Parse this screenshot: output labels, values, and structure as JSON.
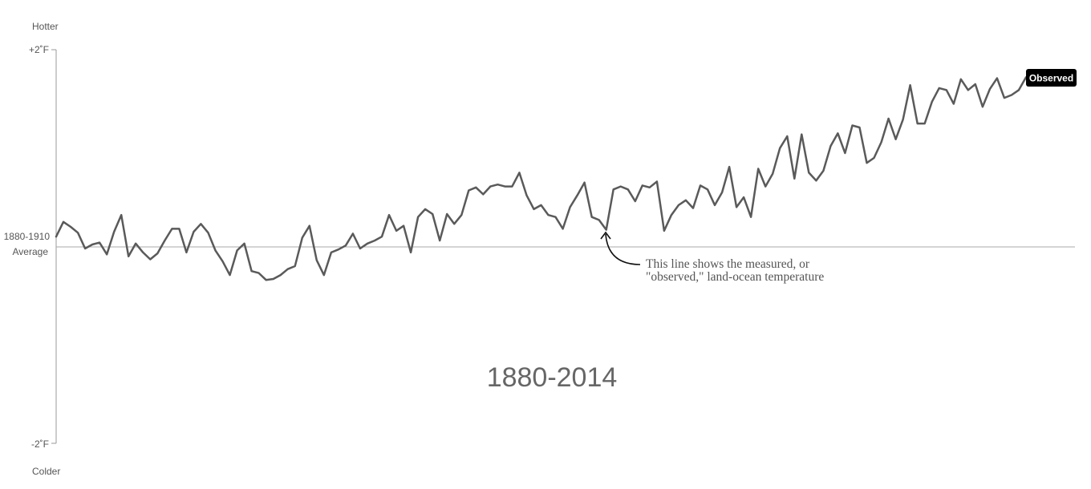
{
  "chart_data": {
    "type": "line",
    "xlim": [
      1880,
      2014
    ],
    "ylim": [
      -2,
      2
    ],
    "y_ticks": [
      {
        "value": 2,
        "label": "+2˚F"
      },
      {
        "value": 0,
        "label": "1880-1910"
      },
      {
        "value": -2,
        "label": "-2˚F"
      }
    ],
    "baseline_label": [
      "1880-1910",
      "Average"
    ],
    "axis_top_label": "Hotter",
    "axis_bottom_label": "Colder",
    "period_label": "1880-2014",
    "series": [
      {
        "name": "Observed",
        "color": "#555555",
        "x": [
          1880,
          1881,
          1882,
          1883,
          1884,
          1885,
          1886,
          1887,
          1888,
          1889,
          1890,
          1891,
          1892,
          1893,
          1894,
          1895,
          1896,
          1897,
          1898,
          1899,
          1900,
          1901,
          1902,
          1903,
          1904,
          1905,
          1906,
          1907,
          1908,
          1909,
          1910,
          1911,
          1912,
          1913,
          1914,
          1915,
          1916,
          1917,
          1918,
          1919,
          1920,
          1921,
          1922,
          1923,
          1924,
          1925,
          1926,
          1927,
          1928,
          1929,
          1930,
          1931,
          1932,
          1933,
          1934,
          1935,
          1936,
          1937,
          1938,
          1939,
          1940,
          1941,
          1942,
          1943,
          1944,
          1945,
          1946,
          1947,
          1948,
          1949,
          1950,
          1951,
          1952,
          1953,
          1954,
          1955,
          1956,
          1957,
          1958,
          1959,
          1960,
          1961,
          1962,
          1963,
          1964,
          1965,
          1966,
          1967,
          1968,
          1969,
          1970,
          1971,
          1972,
          1973,
          1974,
          1975,
          1976,
          1977,
          1978,
          1979,
          1980,
          1981,
          1982,
          1983,
          1984,
          1985,
          1986,
          1987,
          1988,
          1989,
          1990,
          1991,
          1992,
          1993,
          1994,
          1995,
          1996,
          1997,
          1998,
          1999,
          2000,
          2001,
          2002,
          2003,
          2004,
          2005,
          2006,
          2007,
          2008,
          2009,
          2010,
          2011,
          2012,
          2013,
          2014
        ],
        "y": [
          0.1,
          0.25,
          0.2,
          0.14,
          -0.02,
          0.02,
          0.04,
          -0.08,
          0.15,
          0.32,
          -0.1,
          0.03,
          -0.06,
          -0.13,
          -0.07,
          0.06,
          0.18,
          0.18,
          -0.06,
          0.15,
          0.23,
          0.14,
          -0.04,
          -0.15,
          -0.29,
          -0.04,
          0.03,
          -0.25,
          -0.27,
          -0.34,
          -0.33,
          -0.29,
          -0.23,
          -0.2,
          0.09,
          0.21,
          -0.14,
          -0.29,
          -0.06,
          -0.03,
          0.01,
          0.13,
          -0.02,
          0.03,
          0.06,
          0.1,
          0.32,
          0.16,
          0.21,
          -0.06,
          0.3,
          0.38,
          0.33,
          0.06,
          0.33,
          0.23,
          0.32,
          0.57,
          0.6,
          0.53,
          0.61,
          0.63,
          0.61,
          0.61,
          0.75,
          0.52,
          0.38,
          0.42,
          0.32,
          0.3,
          0.18,
          0.4,
          0.52,
          0.65,
          0.3,
          0.27,
          0.17,
          0.58,
          0.61,
          0.58,
          0.46,
          0.62,
          0.6,
          0.66,
          0.16,
          0.32,
          0.42,
          0.47,
          0.39,
          0.62,
          0.58,
          0.42,
          0.55,
          0.81,
          0.4,
          0.5,
          0.3,
          0.79,
          0.61,
          0.74,
          1.0,
          1.12,
          0.69,
          1.14,
          0.75,
          0.67,
          0.77,
          1.02,
          1.15,
          0.95,
          1.23,
          1.21,
          0.85,
          0.9,
          1.06,
          1.3,
          1.09,
          1.29,
          1.64,
          1.25,
          1.25,
          1.47,
          1.61,
          1.59,
          1.45,
          1.7,
          1.59,
          1.65,
          1.42,
          1.6,
          1.71,
          1.51,
          1.54,
          1.59,
          1.72
        ]
      }
    ],
    "series_badge": "Observed",
    "annotation": {
      "text_lines": [
        "This line shows the measured, or",
        "\"observed,\" land-ocean temperature"
      ],
      "target_year": 1953
    },
    "grid": false
  }
}
